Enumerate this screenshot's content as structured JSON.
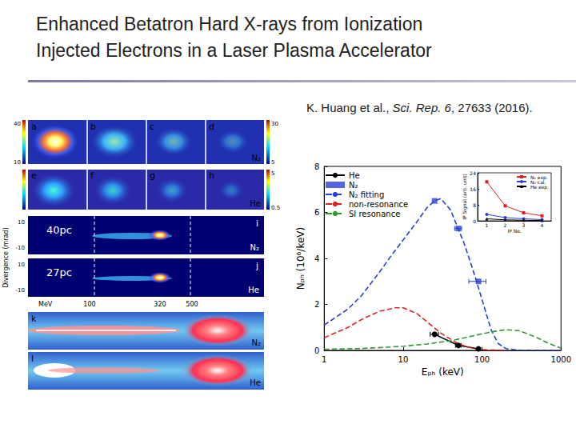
{
  "title": [
    "Enhanced Betatron Hard X-rays from Ionization",
    "Injected Electrons in a Laser Plasma Accelerator"
  ],
  "citation": [
    {
      "text": "K. Huang et al., "
    },
    {
      "text": "Sci. Rep. 6",
      "italic": true
    },
    {
      "text": ", 27633 (2016)."
    }
  ],
  "images": {
    "row1": {
      "panels": [
        "a",
        "b",
        "c",
        "d"
      ],
      "gas": "N₂",
      "left_scale": [
        "40",
        "10"
      ],
      "right_scale": [
        "30",
        "5"
      ]
    },
    "row2": {
      "panels": [
        "e",
        "f",
        "g",
        "h"
      ],
      "gas": "He",
      "right_scale": [
        "5",
        "0.5"
      ]
    },
    "spectra": {
      "y_label": "Divergence (mrad)",
      "energy_labels": [
        "MeV",
        "100",
        "320",
        "500"
      ],
      "panels": [
        {
          "label": "i",
          "charge": "40pc",
          "gas": "N₂",
          "y_ticks": [
            "10",
            "-10"
          ]
        },
        {
          "label": "j",
          "charge": "27pc",
          "gas": "He",
          "y_ticks": [
            "10",
            "-10"
          ]
        }
      ]
    },
    "profiles": [
      {
        "label": "k",
        "gas": "N₂"
      },
      {
        "label": "l",
        "gas": "He"
      }
    ]
  },
  "chart_data": [
    {
      "type": "line",
      "x_label": "Eₚₕ (keV)",
      "y_label": "Nₚₕ (10⁶/keV)",
      "log": "x",
      "xlim": [
        1,
        1000
      ],
      "xticks": [
        1,
        10,
        100,
        1000
      ],
      "ylim": [
        0,
        8
      ],
      "yticks": [
        0,
        2,
        4,
        6,
        8
      ],
      "grid": false,
      "legend": "upper left",
      "series": [
        {
          "name": "He",
          "type": "line",
          "color": "#000000",
          "marker": "circle",
          "line_style": "solid",
          "x": [
            25,
            50,
            90
          ],
          "values": [
            0.7,
            0.22,
            0.07
          ],
          "x_err": [
            3,
            4,
            0
          ]
        },
        {
          "name": "N₂",
          "type": "scatter",
          "color": "#2a3fd6",
          "marker": "square",
          "x": [
            25,
            50,
            90
          ],
          "values": [
            6.5,
            5.3,
            3.0
          ],
          "x_err": [
            0,
            5,
            22
          ]
        },
        {
          "name": "N₂ fitting",
          "type": "line",
          "color": "#2a3fd6",
          "line_style": "dashed",
          "x": [
            1,
            2,
            3,
            5,
            7,
            10,
            15,
            20,
            25,
            30,
            40,
            60,
            80,
            100,
            130,
            160,
            200,
            300,
            1000
          ],
          "values": [
            1.1,
            1.8,
            2.4,
            3.4,
            4.1,
            4.8,
            5.6,
            6.2,
            6.5,
            6.6,
            6.1,
            4.6,
            3.3,
            2.2,
            0.9,
            0.3,
            0.08,
            0.01,
            0
          ]
        },
        {
          "name": "non-resonance",
          "type": "line",
          "color": "#e02020",
          "line_style": "dashed",
          "x": [
            1,
            2,
            3,
            5,
            8,
            10,
            15,
            20,
            30,
            50,
            80,
            100,
            200
          ],
          "values": [
            0.55,
            1.0,
            1.35,
            1.7,
            1.85,
            1.85,
            1.6,
            1.25,
            0.75,
            0.28,
            0.07,
            0.03,
            0
          ]
        },
        {
          "name": "SI resonance",
          "type": "line",
          "color": "#2e9a2e",
          "line_style": "dashed",
          "x": [
            1,
            3,
            10,
            20,
            40,
            70,
            100,
            150,
            200,
            300,
            500,
            700,
            1000
          ],
          "values": [
            0.05,
            0.08,
            0.18,
            0.28,
            0.42,
            0.6,
            0.72,
            0.84,
            0.9,
            0.85,
            0.55,
            0.3,
            0.1
          ]
        }
      ]
    },
    {
      "type": "line",
      "x_label": "IP No.",
      "y_label": "IP Signal (arb. unit)",
      "xlim": [
        0.5,
        4.5
      ],
      "xticks": [
        1,
        2,
        3,
        4
      ],
      "ylim": [
        0,
        24
      ],
      "yticks": [
        0,
        8,
        16,
        24
      ],
      "grid": false,
      "legend": "upper right",
      "series": [
        {
          "name": "N₂ exp.",
          "color": "#e02020",
          "marker": "square",
          "line_style": "solid",
          "x": [
            1,
            2,
            3,
            4
          ],
          "values": [
            19.5,
            7.5,
            4.0,
            2.5
          ]
        },
        {
          "name": "N₂ cal.",
          "color": "#2a3fd6",
          "marker": "circle",
          "line_style": "solid",
          "x": [
            1,
            2,
            3,
            4
          ],
          "values": [
            3.2,
            1.6,
            1.0,
            0.6
          ]
        },
        {
          "name": "He exp.",
          "color": "#000000",
          "marker": "triangle",
          "line_style": "solid",
          "x": [
            1,
            2,
            3,
            4
          ],
          "values": [
            1.0,
            0.5,
            0.3,
            0.2
          ]
        }
      ]
    }
  ]
}
